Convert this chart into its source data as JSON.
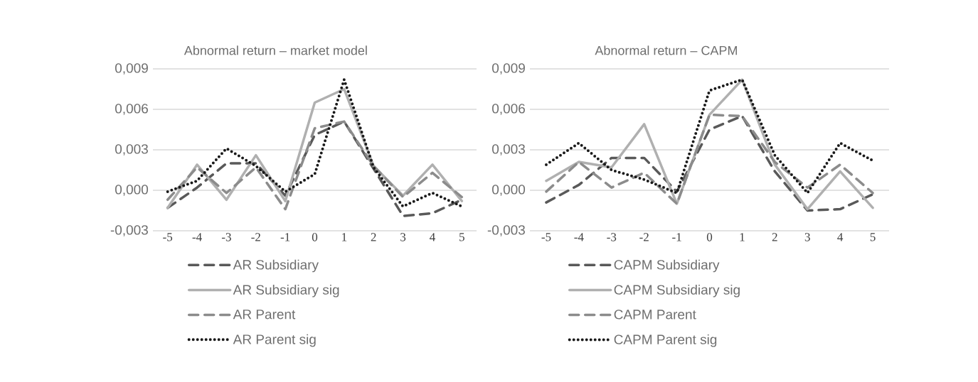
{
  "chart_data": [
    {
      "type": "line",
      "title": "Abnormal return – market model",
      "categories": [
        "-5",
        "-4",
        "-3",
        "-2",
        "-1",
        "0",
        "1",
        "2",
        "3",
        "4",
        "5"
      ],
      "series": [
        {
          "name": "AR Subsidiary",
          "color": "#595959",
          "line_style": "dashed",
          "values": [
            -0.0013,
            0.0002,
            0.002,
            0.002,
            -0.0004,
            0.0041,
            0.0051,
            0.0016,
            -0.0019,
            -0.0017,
            -0.0007
          ]
        },
        {
          "name": "AR Subsidiary sig",
          "color": "#b0b0b0",
          "line_style": "solid",
          "values": [
            -0.0013,
            0.0019,
            -0.0007,
            0.0026,
            -0.0008,
            0.0065,
            0.0075,
            0.0018,
            -0.0004,
            0.0019,
            -0.0008
          ]
        },
        {
          "name": "AR Parent",
          "color": "#8c8c8c",
          "line_style": "dashed",
          "values": [
            -0.0007,
            0.0017,
            -0.0002,
            0.0017,
            -0.0014,
            0.0046,
            0.0051,
            0.0018,
            -0.0005,
            0.0013,
            -0.0005
          ]
        },
        {
          "name": "AR Parent sig",
          "color": "#1a1a1a",
          "line_style": "dotted",
          "values": [
            -0.0001,
            0.0007,
            0.0031,
            0.0018,
            -0.0001,
            0.0012,
            0.0082,
            0.0017,
            -0.0012,
            -0.0002,
            -0.0012
          ]
        }
      ],
      "ylim": [
        -0.003,
        0.009
      ],
      "yticks": [
        {
          "value": -0.003,
          "label": "-0,003"
        },
        {
          "value": 0,
          "label": "0,000"
        },
        {
          "value": 0.003,
          "label": "0,003"
        },
        {
          "value": 0.006,
          "label": "0,006"
        },
        {
          "value": 0.009,
          "label": "0,009"
        }
      ],
      "grid": "y",
      "legend": "bottom"
    },
    {
      "type": "line",
      "title": "Abnormal return – CAPM",
      "categories": [
        "-5",
        "-4",
        "-3",
        "-2",
        "-1",
        "0",
        "1",
        "2",
        "3",
        "4",
        "5"
      ],
      "series": [
        {
          "name": "CAPM Subsidiary",
          "color": "#595959",
          "line_style": "dashed",
          "values": [
            -0.0009,
            0.0004,
            0.0024,
            0.0024,
            -0.0001,
            0.0045,
            0.0055,
            0.0014,
            -0.0015,
            -0.0014,
            -0.0003
          ]
        },
        {
          "name": "CAPM Subsidiary sig",
          "color": "#b0b0b0",
          "line_style": "solid",
          "values": [
            0.0007,
            0.0021,
            0.0017,
            0.0049,
            -0.001,
            0.0056,
            0.0082,
            0.0019,
            -0.0014,
            0.0014,
            -0.0013
          ]
        },
        {
          "name": "CAPM Parent",
          "color": "#8c8c8c",
          "line_style": "dashed",
          "values": [
            -0.0001,
            0.0021,
            0.0002,
            0.0013,
            -0.001,
            0.0056,
            0.0055,
            0.0021,
            0.0002,
            0.0019,
            -0.0002
          ]
        },
        {
          "name": "CAPM Parent sig",
          "color": "#1a1a1a",
          "line_style": "dotted",
          "values": [
            0.0019,
            0.0035,
            0.0015,
            0.0008,
            -0.0002,
            0.0074,
            0.0082,
            0.0026,
            -0.0002,
            0.0035,
            0.0022
          ]
        }
      ],
      "ylim": [
        -0.003,
        0.009
      ],
      "yticks": [
        {
          "value": -0.003,
          "label": "-0,003"
        },
        {
          "value": 0,
          "label": "0,000"
        },
        {
          "value": 0.003,
          "label": "0,003"
        },
        {
          "value": 0.006,
          "label": "0,006"
        },
        {
          "value": 0.009,
          "label": "0,009"
        }
      ],
      "grid": "y",
      "legend": "bottom"
    }
  ]
}
